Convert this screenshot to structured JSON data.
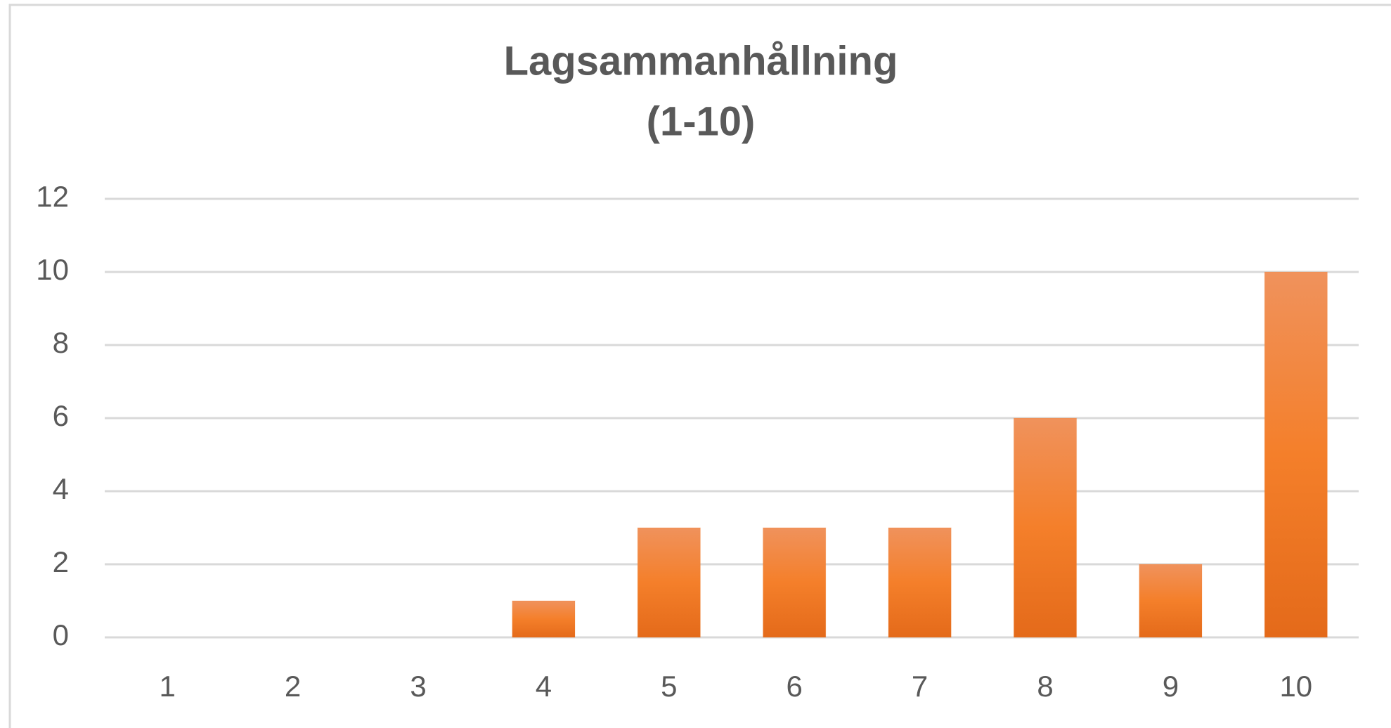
{
  "chart_data": {
    "type": "bar",
    "title": [
      "Lagsammanhållning",
      "(1-10)"
    ],
    "categories": [
      "1",
      "2",
      "3",
      "4",
      "5",
      "6",
      "7",
      "8",
      "9",
      "10"
    ],
    "values": [
      0,
      0,
      0,
      1,
      3,
      3,
      3,
      6,
      2,
      10
    ],
    "color": "#f07f2c",
    "ylim": [
      0,
      12
    ],
    "yticks": [
      0,
      2,
      4,
      6,
      8,
      10,
      12
    ],
    "grid": true
  }
}
